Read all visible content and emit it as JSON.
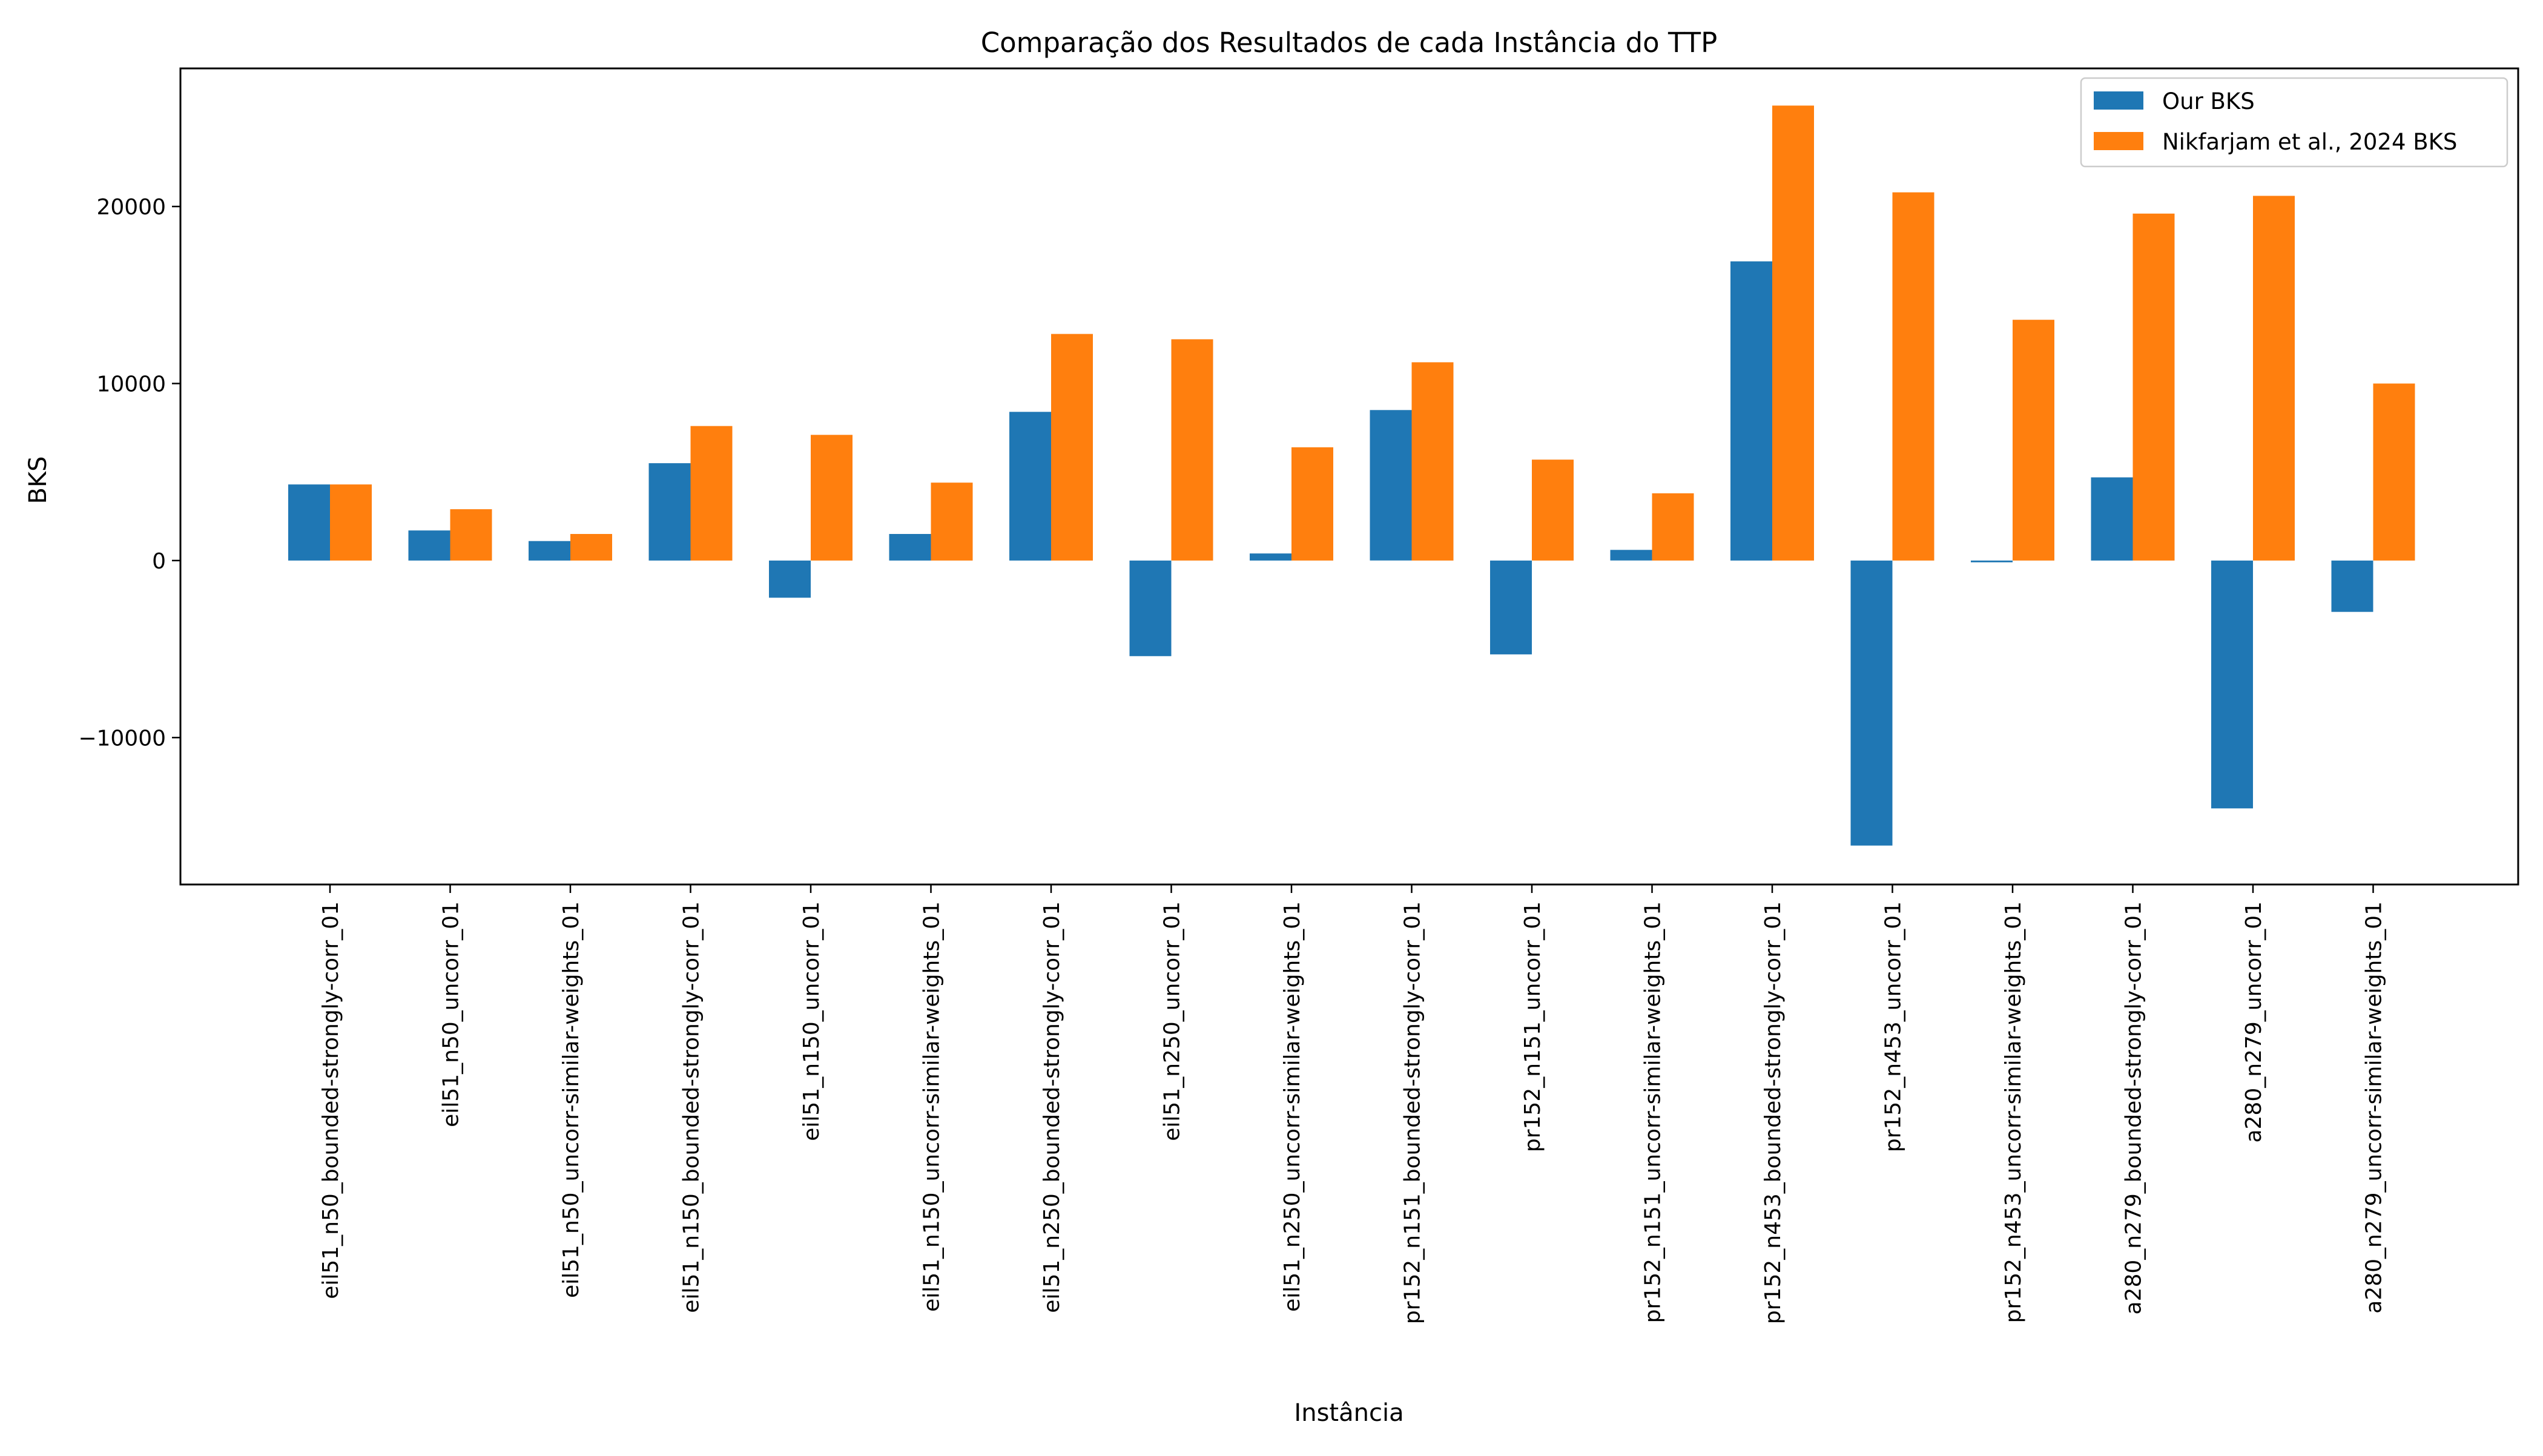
{
  "chart_data": {
    "type": "bar",
    "title": "Comparação dos Resultados de cada Instância do TTP",
    "xlabel": "Instância",
    "ylabel": "BKS",
    "ylim": [
      -18300,
      27800
    ],
    "yticks": [
      -10000,
      0,
      10000,
      20000
    ],
    "ytick_labels": [
      "−10000",
      "0",
      "10000",
      "20000"
    ],
    "grid": false,
    "legend_position": "top-right",
    "categories": [
      "eil51_n50_bounded-strongly-corr_01",
      "eil51_n50_uncorr_01",
      "eil51_n50_uncorr-similar-weights_01",
      "eil51_n150_bounded-strongly-corr_01",
      "eil51_n150_uncorr_01",
      "eil51_n150_uncorr-similar-weights_01",
      "eil51_n250_bounded-strongly-corr_01",
      "eil51_n250_uncorr_01",
      "eil51_n250_uncorr-similar-weights_01",
      "pr152_n151_bounded-strongly-corr_01",
      "pr152_n151_uncorr_01",
      "pr152_n151_uncorr-similar-weights_01",
      "pr152_n453_bounded-strongly-corr_01",
      "pr152_n453_uncorr_01",
      "pr152_n453_uncorr-similar-weights_01",
      "a280_n279_bounded-strongly-corr_01",
      "a280_n279_uncorr_01",
      "a280_n279_uncorr-similar-weights_01"
    ],
    "series": [
      {
        "name": "Our BKS",
        "color": "#1f77b4",
        "values": [
          4300,
          1700,
          1100,
          5500,
          -2100,
          1500,
          8400,
          -5400,
          400,
          8500,
          -5300,
          600,
          16900,
          -16100,
          -100,
          4700,
          -14000,
          -2900
        ]
      },
      {
        "name": "Nikfarjam et al., 2024 BKS",
        "color": "#ff7f0e",
        "values": [
          4300,
          2900,
          1500,
          7600,
          7100,
          4400,
          12800,
          12500,
          6400,
          11200,
          5700,
          3800,
          25700,
          20800,
          13600,
          19600,
          20600,
          10000
        ]
      }
    ]
  }
}
